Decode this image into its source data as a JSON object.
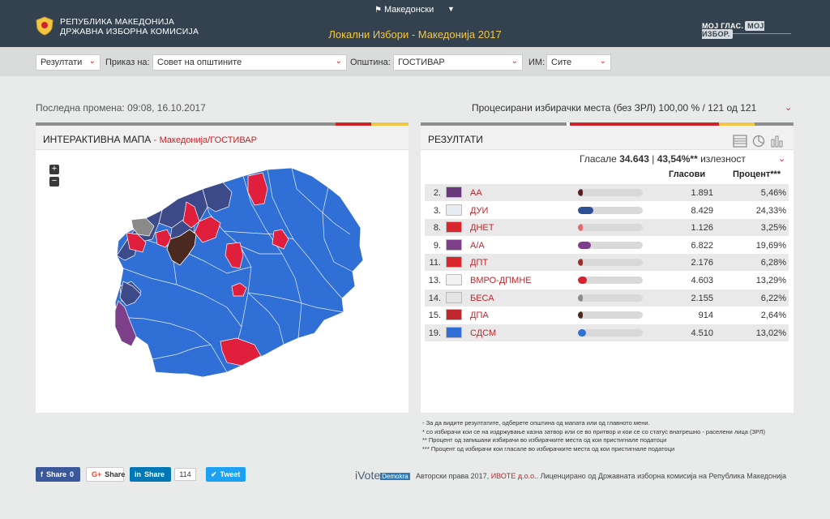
{
  "header": {
    "org_line1": "РЕПУБЛИКА МАКЕДОНИЈА",
    "org_line2": "ДРЖАВНА ИЗБОРНА КОМИСИЈА",
    "language": "Македонски",
    "title": "Локални Избори - Македонија 2017",
    "brand": "МОЈ ГЛАС.",
    "brand_tag": "МОЈ ИЗБОР."
  },
  "filters": {
    "results_select": "Резултати",
    "view_label": "Приказ на:",
    "view_select": "Совет на општините",
    "municipality_label": "Општина:",
    "municipality_select": "ГОСТИВАР",
    "im_label": "ИМ:",
    "im_select": "Сите"
  },
  "status": {
    "last_change": "Последна промена: 09:08, 16.10.2017",
    "processed": "Процесирани избирачки места (без ЗРЛ) 100,00 % / 121 од 121"
  },
  "map_panel": {
    "title": "ИНТЕРАКТИВНА МАПА",
    "separator": "-",
    "breadcrumb": "Македонија/ГОСТИВАР",
    "zoom_in": "+",
    "zoom_out": "−"
  },
  "results_panel": {
    "title": "РЕЗУЛТАТИ",
    "voted_label": "Гласале",
    "voted_value": "34.643",
    "turnout_value": "43,54%**",
    "turnout_label": "излезност",
    "col_votes": "Гласови",
    "col_percent": "Процент***",
    "rows": [
      {
        "num": "2.",
        "party": "АА",
        "votes": "1.891",
        "percent": "5,46%",
        "share": 5.46,
        "logo_color": "#6b3a7d",
        "bar_color": "#5a1f1f"
      },
      {
        "num": "3.",
        "party": "ДУИ",
        "votes": "8.429",
        "percent": "24,33%",
        "share": 24.33,
        "logo_color": "#e8ecf4",
        "bar_color": "#2d4f96"
      },
      {
        "num": "8.",
        "party": "ДНЕТ",
        "votes": "1.126",
        "percent": "3,25%",
        "share": 3.25,
        "logo_color": "#d9262c",
        "bar_color": "#e66a6a"
      },
      {
        "num": "9.",
        "party": "А/А",
        "votes": "6.822",
        "percent": "19,69%",
        "share": 19.69,
        "logo_color": "#7d3f8a",
        "bar_color": "#7d3f8a"
      },
      {
        "num": "11.",
        "party": "ДПТ",
        "votes": "2.176",
        "percent": "6,28%",
        "share": 6.28,
        "logo_color": "#d9262c",
        "bar_color": "#9b2c2c"
      },
      {
        "num": "13.",
        "party": "ВМРО-ДПМНЕ",
        "votes": "4.603",
        "percent": "13,29%",
        "share": 13.29,
        "logo_color": "#f2f2f2",
        "bar_color": "#d9202f"
      },
      {
        "num": "14.",
        "party": "БЕСА",
        "votes": "2.155",
        "percent": "6,22%",
        "share": 6.22,
        "logo_color": "#e4e4e4",
        "bar_color": "#8c8c8c"
      },
      {
        "num": "15.",
        "party": "ДПА",
        "votes": "914",
        "percent": "2,64%",
        "share": 2.64,
        "logo_color": "#c0272d",
        "bar_color": "#4a2a20"
      },
      {
        "num": "19.",
        "party": "СДСМ",
        "votes": "4.510",
        "percent": "13,02%",
        "share": 13.02,
        "logo_color": "#2f6fd6",
        "bar_color": "#2f6fd6"
      }
    ]
  },
  "notes": [
    "- За да видите резултатите, одберете општина од мапата или од главното мени.",
    "* со избирачи кои се на издржување казна затвор или се во притвор и кои се со статус внатрешно - раселени лица (ЗРЛ)",
    "** Процент од запишани избирачи во избирачките места од кои пристигнале податоци",
    "*** Процент од избирачи кои гласале во избирачките места од кои пристигнале податоци"
  ],
  "share": {
    "facebook": "Share",
    "facebook_count": "0",
    "google": "Share",
    "linkedin": "Share",
    "linkedin_count": "114",
    "twitter": "Tweet"
  },
  "footer": {
    "logo": "iVote",
    "logo_tag": "Demokra",
    "text_before": "Авторски права 2017,",
    "company": "ИВОТЕ д.о.о.",
    "text_after": "Лиценцирано од Државната изборна комисија на Република Македонија"
  },
  "colors": {
    "header_bg": "#34424f",
    "title_yellow": "#f2c744",
    "accent_red": "#d1232a",
    "map_blue": "#2f6fd6",
    "map_navy": "#3d4a8a",
    "map_red": "#e01f3d",
    "map_brown": "#4a2a20",
    "map_purple": "#7d3f8a",
    "map_gray": "#8a8a8a"
  }
}
